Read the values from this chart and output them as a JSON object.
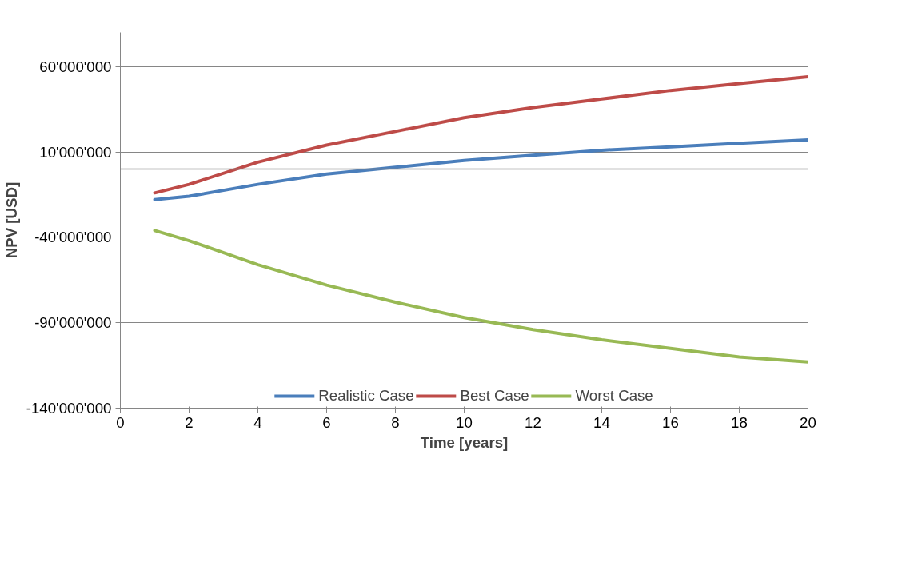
{
  "chart_data": {
    "type": "line",
    "xlabel": "Time [years]",
    "ylabel": "NPV [USD]",
    "x": [
      1,
      2,
      4,
      6,
      8,
      10,
      12,
      14,
      16,
      18,
      20
    ],
    "series": [
      {
        "name": "Realistic Case",
        "color": "#4a7ebb",
        "values": [
          -18000000,
          -16000000,
          -9000000,
          -3000000,
          1000000,
          5000000,
          8000000,
          11000000,
          13000000,
          15000000,
          17000000
        ]
      },
      {
        "name": "Best Case",
        "color": "#be4b48",
        "values": [
          -14000000,
          -9000000,
          4000000,
          14000000,
          22000000,
          30000000,
          36000000,
          41000000,
          46000000,
          50000000,
          54000000
        ]
      },
      {
        "name": "Worst Case",
        "color": "#98b954",
        "values": [
          -36000000,
          -42000000,
          -56000000,
          -68000000,
          -78000000,
          -87000000,
          -94000000,
          -100000000,
          -105000000,
          -110000000,
          -113000000
        ]
      }
    ],
    "xlim": [
      0,
      20
    ],
    "xticks": [
      0,
      2,
      4,
      6,
      8,
      10,
      12,
      14,
      16,
      18,
      20
    ],
    "ylim": [
      -140000000,
      80000000
    ],
    "yticks": [
      {
        "value": -140000000,
        "label": "-140'000'000"
      },
      {
        "value": -90000000,
        "label": "-90'000'000"
      },
      {
        "value": -40000000,
        "label": "-40'000'000"
      },
      {
        "value": 10000000,
        "label": "10'000'000"
      },
      {
        "value": 60000000,
        "label": "60'000'000"
      }
    ],
    "ref_lines": [
      {
        "axis": "y",
        "value": 0,
        "label": null,
        "color": "#868686"
      }
    ],
    "grid": "y",
    "legend": "bottom",
    "marker": "none",
    "line_style": "solid"
  }
}
